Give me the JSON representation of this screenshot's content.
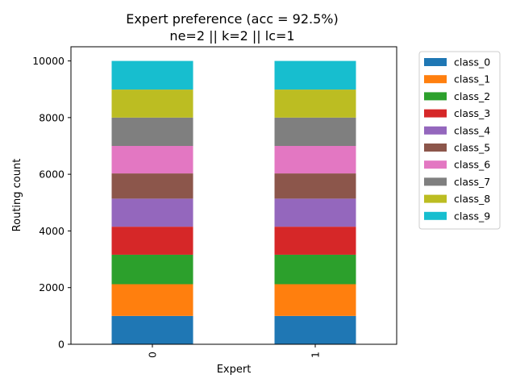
{
  "chart_data": {
    "type": "bar",
    "stacked": true,
    "title_lines": [
      "Expert preference (acc = 92.5%)",
      "ne=2 || k=2 || lc=1"
    ],
    "xlabel": "Expert",
    "ylabel": "Routing count",
    "categories": [
      "0",
      "1"
    ],
    "ylim": [
      0,
      10500
    ],
    "yticks": [
      0,
      2000,
      4000,
      6000,
      8000,
      10000
    ],
    "grid": false,
    "legend_position": "outside-right",
    "series": [
      {
        "name": "class_0",
        "color": "#1f77b4",
        "values": [
          1000,
          1000
        ]
      },
      {
        "name": "class_1",
        "color": "#ff7f0e",
        "values": [
          1120,
          1120
        ]
      },
      {
        "name": "class_2",
        "color": "#2ca02c",
        "values": [
          1040,
          1040
        ]
      },
      {
        "name": "class_3",
        "color": "#d62728",
        "values": [
          990,
          990
        ]
      },
      {
        "name": "class_4",
        "color": "#9467bd",
        "values": [
          990,
          990
        ]
      },
      {
        "name": "class_5",
        "color": "#8c564b",
        "values": [
          890,
          890
        ]
      },
      {
        "name": "class_6",
        "color": "#e377c2",
        "values": [
          970,
          970
        ]
      },
      {
        "name": "class_7",
        "color": "#7f7f7f",
        "values": [
          1000,
          1000
        ]
      },
      {
        "name": "class_8",
        "color": "#bcbd22",
        "values": [
          990,
          990
        ]
      },
      {
        "name": "class_9",
        "color": "#17becf",
        "values": [
          1010,
          1010
        ]
      }
    ]
  }
}
